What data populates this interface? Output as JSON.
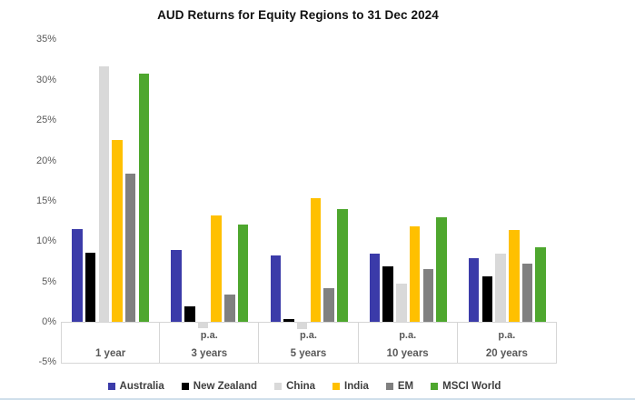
{
  "title": "AUD Returns for Equity Regions to 31 Dec 2024",
  "chart_data": {
    "type": "bar",
    "title": "AUD Returns for Equity Regions to 31 Dec 2024",
    "categories": [
      "1 year",
      "3 years",
      "5 years",
      "10 years",
      "20 years"
    ],
    "category_sublabels": [
      "",
      "p.a.",
      "p.a.",
      "p.a.",
      "p.a."
    ],
    "series": [
      {
        "name": "Australia",
        "color": "#3b3ba9",
        "values": [
          11.5,
          8.9,
          8.2,
          8.4,
          7.9
        ]
      },
      {
        "name": "New Zealand",
        "color": "#000000",
        "values": [
          8.6,
          1.9,
          0.3,
          6.9,
          5.6
        ]
      },
      {
        "name": "China",
        "color": "#d9d9d9",
        "values": [
          31.7,
          -0.8,
          -0.9,
          4.7,
          8.5
        ]
      },
      {
        "name": "India",
        "color": "#ffc000",
        "values": [
          22.5,
          13.2,
          15.3,
          11.8,
          11.4
        ]
      },
      {
        "name": "EM",
        "color": "#808080",
        "values": [
          18.4,
          3.4,
          4.2,
          6.5,
          7.2
        ]
      },
      {
        "name": "MSCI World",
        "color": "#4ea72e",
        "values": [
          30.8,
          12.1,
          14.0,
          13.0,
          9.2
        ]
      }
    ],
    "xlabel": "",
    "ylabel": "",
    "ylim": [
      -5,
      35
    ],
    "ytick_step": 5,
    "ytick_suffix": "%",
    "grid": false,
    "legend_position": "bottom"
  },
  "colors": {
    "tick_text": "#595959",
    "category_text": "#595959",
    "legend_text": "#3f3f3f",
    "strip_border": "#d6d6d6",
    "bottom_edge": "#cfdfeb"
  }
}
